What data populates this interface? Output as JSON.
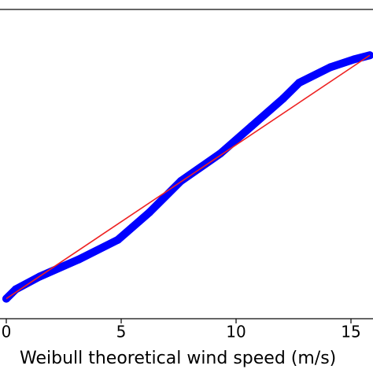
{
  "chart_data": {
    "type": "scatter",
    "xlabel": "Weibull theoretical wind speed (m/s)",
    "xlim": [
      -0.27,
      16.5
    ],
    "ylim": [
      -1.3,
      18.8
    ],
    "xticks": [
      0,
      5,
      10,
      15
    ],
    "series": [
      {
        "color": "#0000ff",
        "style": "markers",
        "x": [
          0,
          0.41,
          1.44,
          3.15,
          4.86,
          6.23,
          7.6,
          9.32,
          10.68,
          12.05,
          12.74,
          14.11,
          15.14,
          15.82
        ],
        "values": [
          0,
          0.61,
          1.43,
          2.55,
          3.83,
          5.61,
          7.65,
          9.44,
          11.22,
          13.01,
          14.03,
          15.05,
          15.56,
          15.82
        ]
      },
      {
        "color": "#ee2222",
        "style": "line",
        "x": [
          0,
          15.82
        ],
        "values": [
          0,
          15.82
        ]
      }
    ]
  }
}
